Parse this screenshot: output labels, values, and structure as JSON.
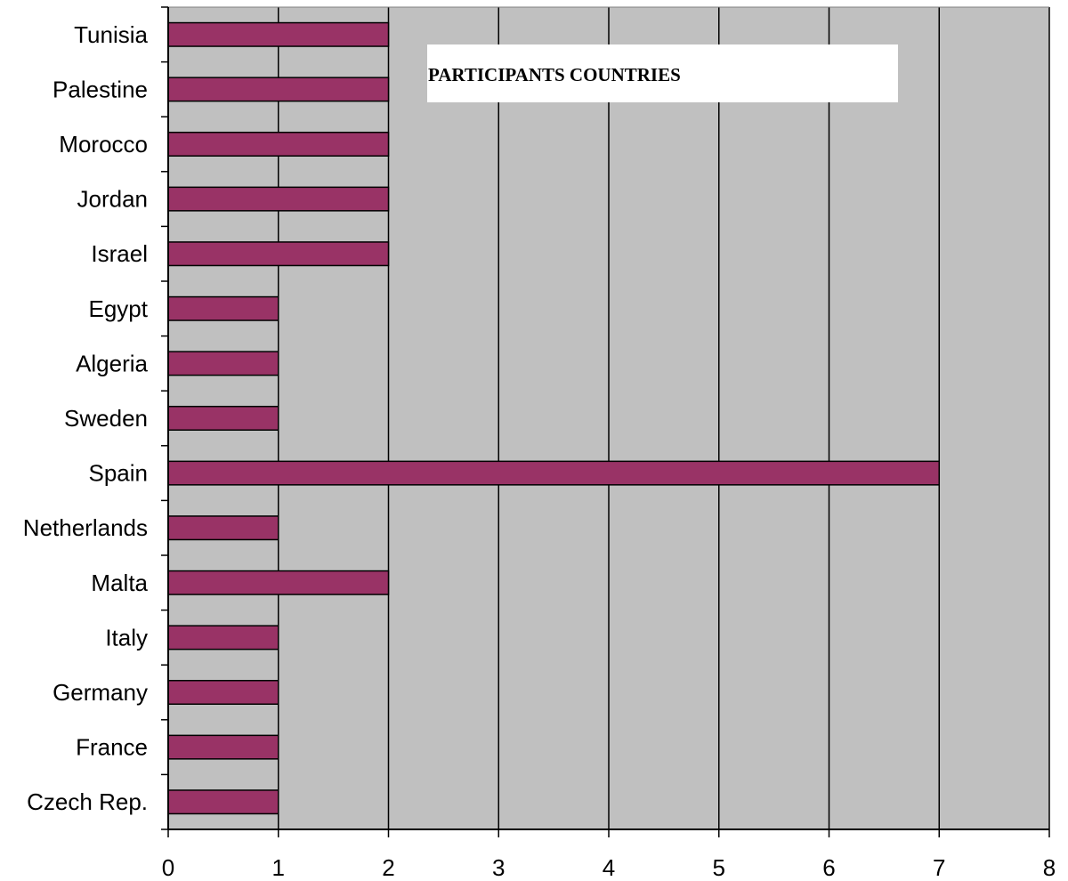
{
  "chart_data": {
    "type": "bar",
    "orientation": "horizontal",
    "title": "PARTICIPANTS COUNTRIES",
    "categories": [
      "Tunisia",
      "Palestine",
      "Morocco",
      "Jordan",
      "Israel",
      "Egypt",
      "Algeria",
      "Sweden",
      "Spain",
      "Netherlands",
      "Malta",
      "Italy",
      "Germany",
      "France",
      "Czech Rep."
    ],
    "values": [
      2,
      2,
      2,
      2,
      2,
      1,
      1,
      1,
      7,
      1,
      2,
      1,
      1,
      1,
      1
    ],
    "xlim": [
      0,
      8
    ],
    "x_ticks": [
      "0",
      "1",
      "2",
      "3",
      "4",
      "5",
      "6",
      "7",
      "8"
    ],
    "xlabel": "",
    "ylabel": "",
    "grid": "vertical",
    "legend": "none",
    "colors": {
      "bar": "#993366",
      "plot_background": "#c0c0c0",
      "title_box": "#ffffff"
    }
  }
}
